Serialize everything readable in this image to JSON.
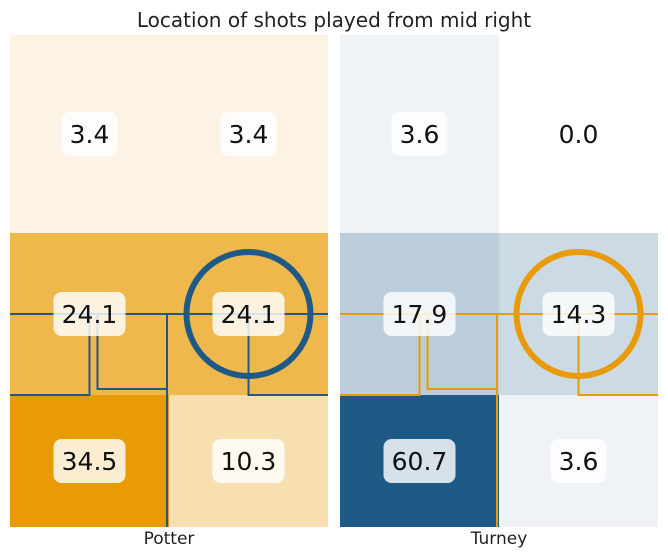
{
  "title": "Location of shots played from mid right",
  "chart_data": {
    "type": "heatmap",
    "title": "Location of shots played from mid right",
    "unit": "percent of shots",
    "rows": [
      "top",
      "middle",
      "bottom"
    ],
    "columns": [
      "left",
      "right"
    ],
    "panels": [
      {
        "player": "Potter",
        "values": [
          [
            3.4,
            3.4
          ],
          [
            24.1,
            24.1
          ],
          [
            34.5,
            10.3
          ]
        ],
        "labels": [
          [
            "3.4",
            "3.4"
          ],
          [
            "24.1",
            "24.1"
          ],
          [
            "34.5",
            "10.3"
          ]
        ],
        "colors": [
          [
            "#FCF3E5",
            "#FCF3E5"
          ],
          [
            "#EFB84D",
            "#EFB84D"
          ],
          [
            "#E99A07",
            "#F7DFB0"
          ]
        ],
        "line_color": "#1F5A87",
        "origin": [
          1,
          1
        ]
      },
      {
        "player": "Turney",
        "values": [
          [
            3.6,
            0.0
          ],
          [
            17.9,
            14.3
          ],
          [
            60.7,
            3.6
          ]
        ],
        "labels": [
          [
            "3.6",
            "0.0"
          ],
          [
            "17.9",
            "14.3"
          ],
          [
            "60.7",
            "3.6"
          ]
        ],
        "colors": [
          [
            "#EFF3F6",
            "#FFFFFF"
          ],
          [
            "#BCCEDB",
            "#CCDAE4"
          ],
          [
            "#1F5A87",
            "#EFF3F6"
          ]
        ],
        "line_color": "#E99A07",
        "origin": [
          1,
          1
        ]
      }
    ]
  }
}
